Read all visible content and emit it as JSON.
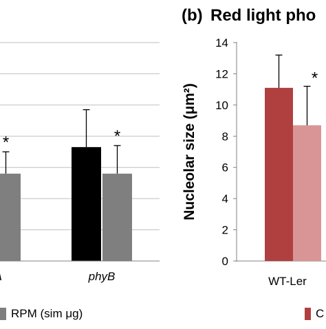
{
  "chart_data": [
    {
      "id": "left",
      "type": "bar",
      "title": "",
      "xlabel": "",
      "ylabel": "",
      "grid": true,
      "ylim": [
        0,
        14
      ],
      "categories": [
        "A",
        "phyB"
      ],
      "series": [
        {
          "name": "",
          "color": "#000000",
          "values": [
            null,
            7.3
          ],
          "errors": [
            null,
            2.4
          ]
        },
        {
          "name": "RPM (sim μg)",
          "color": "#7f7f7f",
          "values": [
            5.6,
            5.6
          ],
          "errors": [
            1.4,
            1.8
          ]
        }
      ],
      "significance": [
        "*",
        "*"
      ],
      "legend": {
        "position": "bottom",
        "items": [
          "RPM (sim μg)"
        ]
      }
    },
    {
      "id": "right",
      "type": "bar",
      "panel_label": "(b)",
      "title": "Red light pho",
      "xlabel": "",
      "ylabel": "Nucleolar size (μm²)",
      "grid": false,
      "ylim": [
        0,
        14
      ],
      "yticks": [
        0,
        2,
        4,
        6,
        8,
        10,
        12,
        14
      ],
      "categories": [
        "WT-Ler"
      ],
      "series": [
        {
          "name": "",
          "color": "#b04040",
          "values": [
            11.1
          ],
          "errors": [
            2.1
          ]
        },
        {
          "name": "",
          "color": "#d99595",
          "values": [
            8.7
          ],
          "errors": [
            2.5
          ]
        }
      ],
      "significance": [
        "*"
      ],
      "legend": {
        "position": "bottom",
        "items": [
          "C"
        ]
      }
    }
  ]
}
